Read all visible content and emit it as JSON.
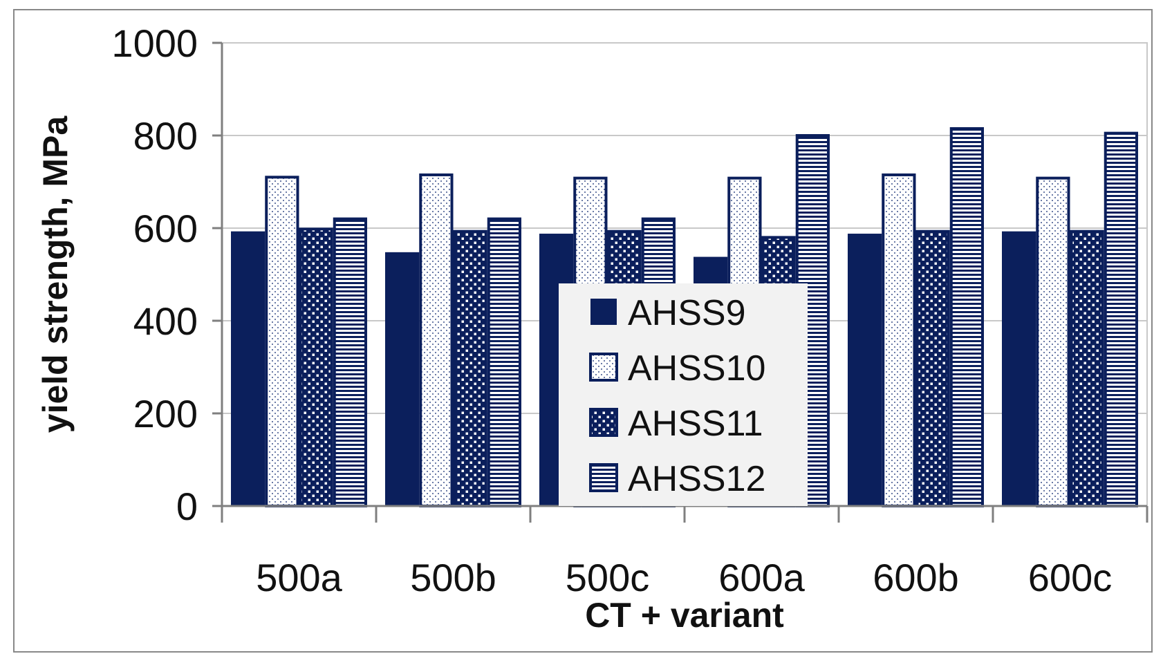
{
  "chart_data": {
    "type": "bar",
    "title": "",
    "xlabel": "CT + variant",
    "ylabel": "yield strength, MPa",
    "ylim": [
      0,
      1000
    ],
    "yticks": [
      0,
      200,
      400,
      600,
      800,
      1000
    ],
    "categories": [
      "500a",
      "500b",
      "500c",
      "600a",
      "600b",
      "600c"
    ],
    "series": [
      {
        "name": "AHSS9",
        "pattern": "solid",
        "values": [
          593,
          548,
          588,
          538,
          588,
          593
        ]
      },
      {
        "name": "AHSS10",
        "pattern": "fine-dots",
        "values": [
          710,
          715,
          708,
          708,
          715,
          708
        ]
      },
      {
        "name": "AHSS11",
        "pattern": "checker",
        "values": [
          598,
          593,
          593,
          580,
          593,
          593
        ]
      },
      {
        "name": "AHSS12",
        "pattern": "horizontal",
        "values": [
          620,
          620,
          620,
          800,
          815,
          805
        ]
      }
    ],
    "grid": true,
    "legend_position": "inside-center-bottom",
    "colors": {
      "bar": "#0b1f5c",
      "outline": "#0b1f5c",
      "grid": "#c8c8c8",
      "axis": "#7f7f7f",
      "frame": "#888888"
    }
  }
}
